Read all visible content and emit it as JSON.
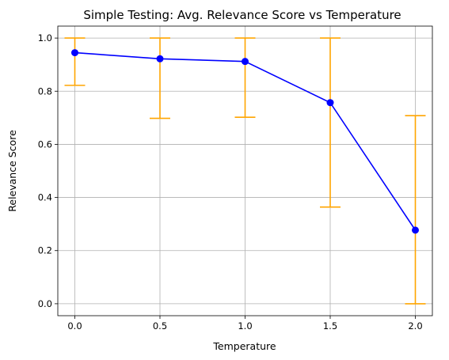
{
  "chart_data": {
    "type": "line",
    "title": "Simple Testing: Avg. Relevance Score vs Temperature",
    "xlabel": "Temperature",
    "ylabel": "Relevance Score",
    "xlim": [
      -0.1,
      2.1
    ],
    "ylim": [
      -0.045,
      1.045
    ],
    "x_ticks": [
      0.0,
      0.5,
      1.0,
      1.5,
      2.0
    ],
    "x_tick_labels": [
      "0.0",
      "0.5",
      "1.0",
      "1.5",
      "2.0"
    ],
    "y_ticks": [
      0.0,
      0.2,
      0.4,
      0.6,
      0.8,
      1.0
    ],
    "y_tick_labels": [
      "0.0",
      "0.2",
      "0.4",
      "0.6",
      "0.8",
      "1.0"
    ],
    "grid": true,
    "series": [
      {
        "x": [
          0.0,
          0.5,
          1.0,
          1.5,
          2.0
        ],
        "y": [
          0.945,
          0.922,
          0.912,
          0.757,
          0.277
        ],
        "err_lower": [
          0.822,
          0.698,
          0.702,
          0.364,
          0.0
        ],
        "err_upper": [
          1.0,
          1.0,
          1.0,
          1.0,
          0.708
        ],
        "line_color": "#0000ff",
        "marker_color": "#0000ff",
        "error_color": "#ffa500"
      }
    ]
  }
}
